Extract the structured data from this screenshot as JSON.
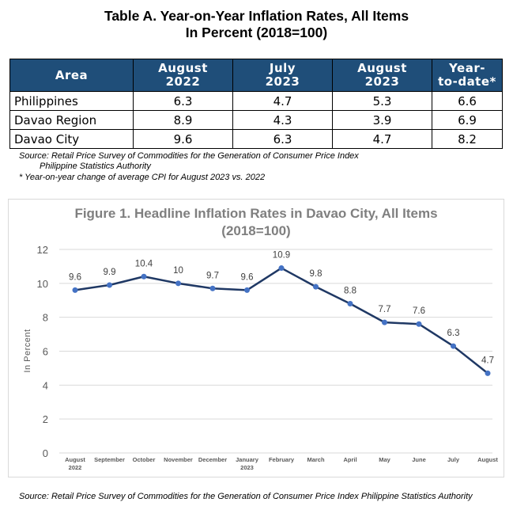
{
  "table": {
    "title_line1": "Table A. Year-on-Year Inflation Rates, All Items",
    "title_line2": "In Percent (2018=100)",
    "headers": [
      {
        "line1": "Area",
        "line2": ""
      },
      {
        "line1": "August",
        "line2": "2022"
      },
      {
        "line1": "July",
        "line2": "2023"
      },
      {
        "line1": "August",
        "line2": "2023"
      },
      {
        "line1": "Year-",
        "line2": "to-date*"
      }
    ],
    "rows": [
      {
        "area": "Philippines",
        "aug2022": "6.3",
        "jul2023": "4.7",
        "aug2023": "5.3",
        "ytd": "6.6"
      },
      {
        "area": "Davao Region",
        "aug2022": "8.9",
        "jul2023": "4.3",
        "aug2023": "3.9",
        "ytd": "6.9"
      },
      {
        "area": "Davao City",
        "aug2022": "9.6",
        "jul2023": "6.3",
        "aug2023": "4.7",
        "ytd": "8.2"
      }
    ],
    "source_line1": "Source: Retail Price Survey of Commodities for the Generation of Consumer Price Index",
    "source_line2": "Philippine Statistics Authority",
    "footnote": "* Year-on-year change of average CPI for August 2023 vs. 2022"
  },
  "chart_data": {
    "type": "line",
    "title": "Figure 1. Headline Inflation Rates in Davao City, All Items",
    "subtitle": "(2018=100)",
    "ylabel": "In Percent",
    "xlabel": "",
    "ylim": [
      0,
      12
    ],
    "yticks": [
      0,
      2,
      4,
      6,
      8,
      10,
      12
    ],
    "grid": true,
    "legend": "none",
    "categories": [
      {
        "line1": "August",
        "line2": "2022"
      },
      {
        "line1": "September",
        "line2": ""
      },
      {
        "line1": "October",
        "line2": ""
      },
      {
        "line1": "November",
        "line2": ""
      },
      {
        "line1": "December",
        "line2": ""
      },
      {
        "line1": "January",
        "line2": "2023"
      },
      {
        "line1": "February",
        "line2": ""
      },
      {
        "line1": "March",
        "line2": ""
      },
      {
        "line1": "April",
        "line2": ""
      },
      {
        "line1": "May",
        "line2": ""
      },
      {
        "line1": "June",
        "line2": ""
      },
      {
        "line1": "July",
        "line2": ""
      },
      {
        "line1": "August",
        "line2": ""
      }
    ],
    "values": [
      9.6,
      9.9,
      10.4,
      10,
      9.7,
      9.6,
      10.9,
      9.8,
      8.8,
      7.7,
      7.6,
      6.3,
      4.7
    ],
    "data_labels": [
      "9.6",
      "9.9",
      "10.4",
      "10",
      "9.7",
      "9.6",
      "10.9",
      "9.8",
      "8.8",
      "7.7",
      "7.6",
      "6.3",
      "4.7"
    ],
    "colors": {
      "line": "#1f3864",
      "marker": "#4472c4",
      "grid": "#d9d9d9",
      "axis_text": "#595959",
      "title": "#7f7f7f"
    }
  },
  "footer_source": "Source: Retail Price Survey of Commodities for the Generation of Consumer Price Index Philippine Statistics Authority"
}
